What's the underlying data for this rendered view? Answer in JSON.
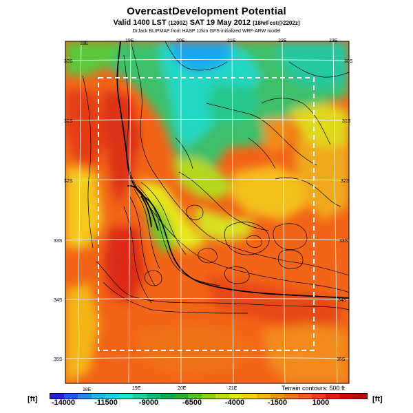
{
  "title": "OvercastDevelopment Potential",
  "subtitle_main": "Valid 1400 LST",
  "subtitle_utc": "(1200Z)",
  "subtitle_date": "SAT 19 May 2012",
  "subtitle_fcst": "[18hrFcst@2202z]",
  "credit": "DrJack BLIPMAP from HASP 12km GFS-initialized WRF-ARW model",
  "terrain_note": "Terrain contours: 500 ft",
  "unit_left": "[ft]",
  "unit_right": "[ft]",
  "lon_labels_top": [
    "18E",
    "19E",
    "20E",
    "21E",
    "22E",
    "23E"
  ],
  "lon_labels_bottom": [
    "18E",
    "19E",
    "20E",
    "21E"
  ],
  "lat_labels_left": [
    "30S",
    "31S",
    "32S",
    "33S",
    "34S",
    "35S"
  ],
  "lat_labels_right": [
    "30S",
    "31S",
    "32S",
    "33S",
    "34S",
    "35S"
  ],
  "colorbar_ticks": [
    "-14000",
    "-11500",
    "-9000",
    "-6500",
    "-4000",
    "-1500",
    "1000"
  ],
  "colorbar_colors": [
    "#2323d6",
    "#1e5af0",
    "#1e8cf5",
    "#1eb4f5",
    "#1ed2e6",
    "#1ee6c8",
    "#1ed2a0",
    "#14be78",
    "#0aaa50",
    "#1eb428",
    "#50c814",
    "#8cd214",
    "#bedc14",
    "#e6e614",
    "#f5d214",
    "#f5b414",
    "#f59614",
    "#f57814",
    "#f55a14",
    "#eb3c14",
    "#dc1e14",
    "#c80a0a",
    "#b40a0a"
  ]
}
